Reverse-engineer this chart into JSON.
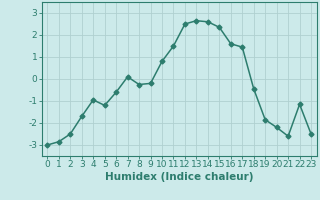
{
  "x": [
    0,
    1,
    2,
    3,
    4,
    5,
    6,
    7,
    8,
    9,
    10,
    11,
    12,
    13,
    14,
    15,
    16,
    17,
    18,
    19,
    20,
    21,
    22,
    23
  ],
  "y": [
    -3.0,
    -2.85,
    -2.5,
    -1.7,
    -0.95,
    -1.2,
    -0.6,
    0.1,
    -0.25,
    -0.2,
    0.8,
    1.5,
    2.5,
    2.65,
    2.6,
    2.35,
    1.6,
    1.45,
    -0.45,
    -1.85,
    -2.2,
    -2.6,
    -1.15,
    -2.5
  ],
  "line_color": "#2d7d6e",
  "marker": "D",
  "marker_size": 2.5,
  "bg_color": "#cceaea",
  "grid_color": "#b0d0d0",
  "xlabel": "Humidex (Indice chaleur)",
  "ylim": [
    -3.5,
    3.5
  ],
  "xlim": [
    -0.5,
    23.5
  ],
  "yticks": [
    -3,
    -2,
    -1,
    0,
    1,
    2,
    3
  ],
  "xticks": [
    0,
    1,
    2,
    3,
    4,
    5,
    6,
    7,
    8,
    9,
    10,
    11,
    12,
    13,
    14,
    15,
    16,
    17,
    18,
    19,
    20,
    21,
    22,
    23
  ],
  "xlabel_fontsize": 7.5,
  "tick_fontsize": 6.5,
  "linewidth": 1.1
}
